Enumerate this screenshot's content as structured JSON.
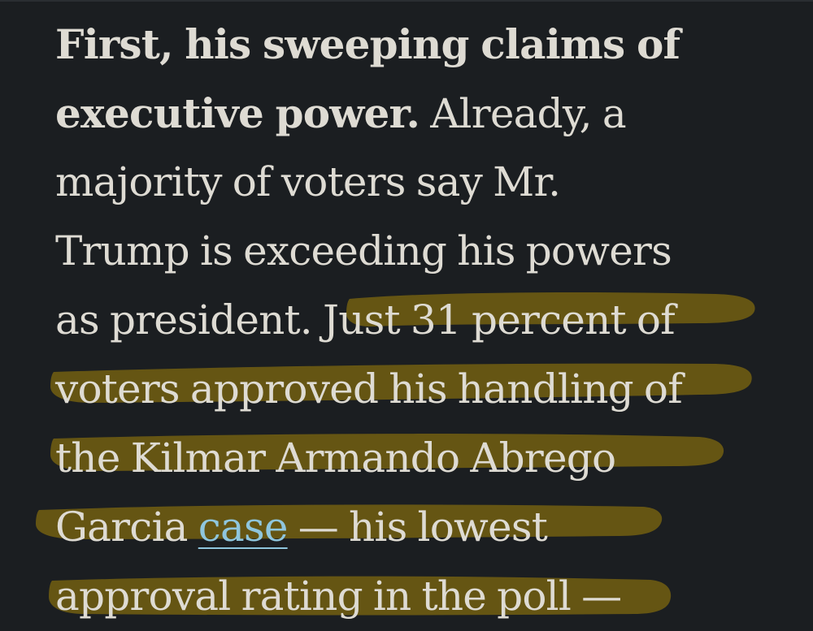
{
  "article": {
    "lines": [
      {
        "bold": "First, his sweeping claims of",
        "text": ""
      },
      {
        "bold": "executive power.",
        "text": " Already, a"
      },
      {
        "bold": "",
        "text": "majority of voters say Mr."
      },
      {
        "bold": "",
        "text": "Trump is exceeding his powers"
      },
      {
        "bold": "",
        "text": "as president. Just 31 percent of"
      },
      {
        "bold": "",
        "text": "voters approved his handling of"
      },
      {
        "bold": "",
        "text": "the Kilmar Armando Abrego"
      },
      {
        "bold": "",
        "text": "Garcia ",
        "link": "case",
        "after": " — his lowest"
      },
      {
        "bold": "",
        "text": "approval rating in the poll —"
      }
    ]
  },
  "highlight": {
    "color": "#6b5a12"
  }
}
